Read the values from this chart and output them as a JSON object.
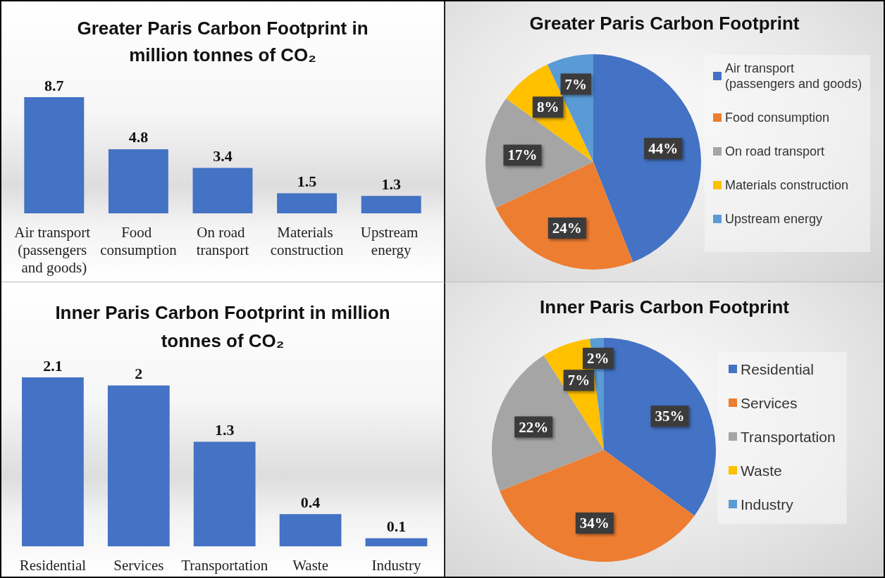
{
  "chart_data": [
    {
      "type": "bar",
      "title": "Greater Paris Carbon Footprint in million tonnes of CO₂",
      "categories": [
        "Air transport (passengers and goods)",
        "Food consumption",
        "On road transport",
        "Materials construction",
        "Upstream energy"
      ],
      "values": [
        8.7,
        4.8,
        3.4,
        1.5,
        1.3
      ],
      "color": "#4472c4",
      "data_labels": true,
      "tick_labels": "x",
      "grid": false
    },
    {
      "type": "pie",
      "title": "Greater Paris Carbon Footprint",
      "categories": [
        "Air transport (passengers and goods)",
        "Food consumption",
        "On road transport",
        "Materials construction",
        "Upstream energy"
      ],
      "values": [
        44,
        24,
        17,
        8,
        7
      ],
      "colors": [
        "#4472c4",
        "#ed7d31",
        "#a5a5a5",
        "#ffc000",
        "#5b9bd5"
      ],
      "value_labels": [
        "44%",
        "24%",
        "17%",
        "8%",
        "7%"
      ],
      "legend": "right"
    },
    {
      "type": "bar",
      "title": "Inner Paris Carbon Footprint in million tonnes of CO₂",
      "categories": [
        "Residential",
        "Services",
        "Transportation",
        "Waste",
        "Industry"
      ],
      "values": [
        2.1,
        2,
        1.3,
        0.4,
        0.1
      ],
      "color": "#4472c4",
      "data_labels": true,
      "tick_labels": "x",
      "grid": false
    },
    {
      "type": "pie",
      "title": "Inner Paris Carbon Footprint",
      "categories": [
        "Residential",
        "Services",
        "Transportation",
        "Waste",
        "Industry"
      ],
      "values": [
        35,
        34,
        22,
        7,
        2
      ],
      "colors": [
        "#4472c4",
        "#ed7d31",
        "#a5a5a5",
        "#ffc000",
        "#5b9bd5"
      ],
      "value_labels": [
        "35%",
        "34%",
        "22%",
        "7%",
        "2%"
      ],
      "legend": "right"
    }
  ]
}
